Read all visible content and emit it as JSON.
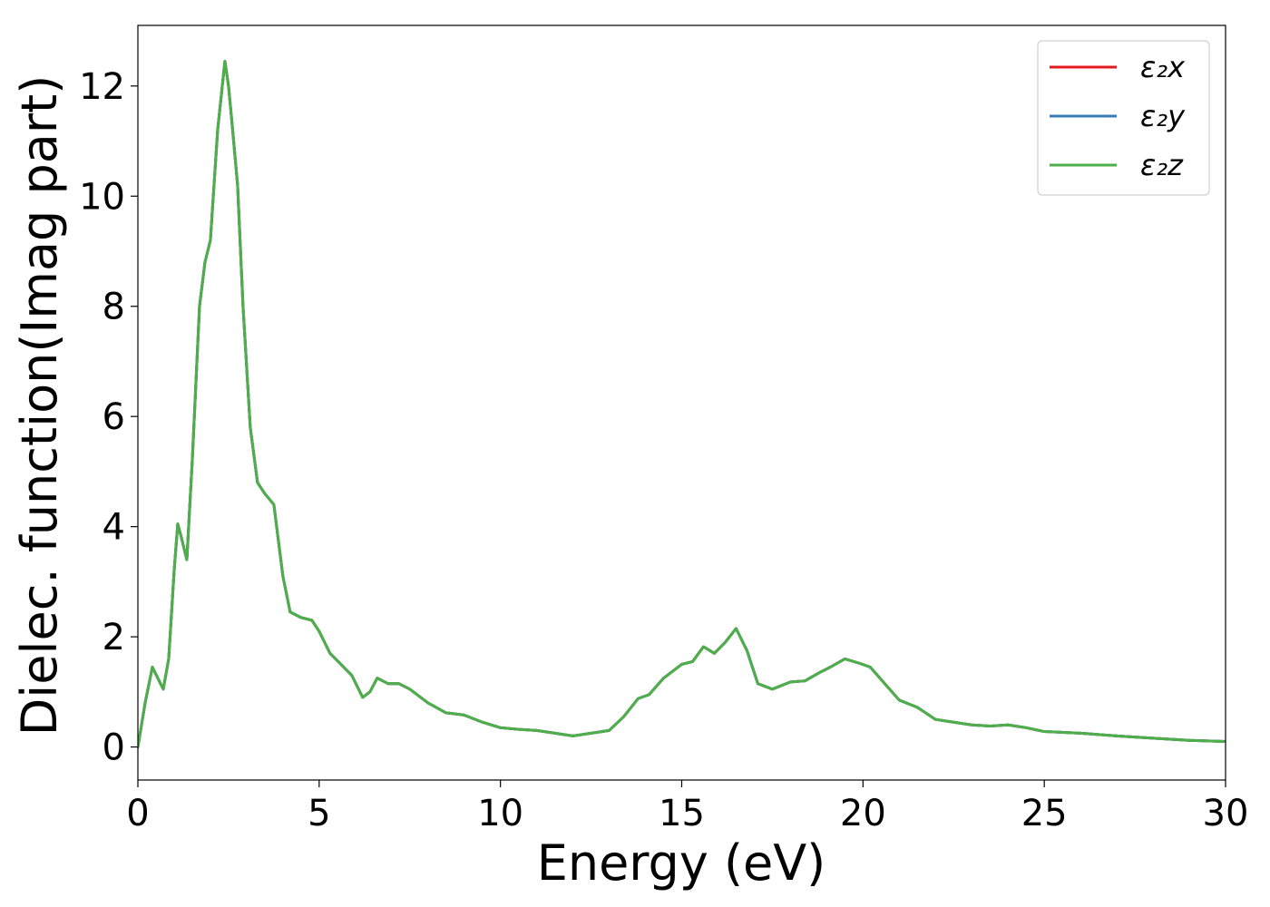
{
  "chart_data": {
    "type": "line",
    "title": "",
    "xlabel": "Energy (eV)",
    "ylabel": "Dielec. function(Imag part)",
    "xlim": [
      0,
      30
    ],
    "ylim": [
      -0.6,
      13.1
    ],
    "xticks": [
      0,
      5,
      10,
      15,
      20,
      25,
      30
    ],
    "yticks": [
      0,
      2,
      4,
      6,
      8,
      10,
      12
    ],
    "grid": false,
    "legend_position": "top-right",
    "x": [
      0,
      0.2,
      0.4,
      0.55,
      0.7,
      0.85,
      1.0,
      1.1,
      1.2,
      1.35,
      1.5,
      1.7,
      1.85,
      2.0,
      2.2,
      2.4,
      2.5,
      2.6,
      2.75,
      2.9,
      3.1,
      3.3,
      3.5,
      3.75,
      4.0,
      4.2,
      4.5,
      4.8,
      5.0,
      5.3,
      5.6,
      5.9,
      6.2,
      6.4,
      6.6,
      6.9,
      7.2,
      7.5,
      8.0,
      8.5,
      9.0,
      9.5,
      10.0,
      10.5,
      11.0,
      11.5,
      12.0,
      12.5,
      13.0,
      13.4,
      13.8,
      14.1,
      14.5,
      15.0,
      15.3,
      15.6,
      15.9,
      16.2,
      16.5,
      16.8,
      17.1,
      17.5,
      18.0,
      18.4,
      18.8,
      19.1,
      19.5,
      19.9,
      20.2,
      20.6,
      21.0,
      21.5,
      22.0,
      22.5,
      23.0,
      23.5,
      24.0,
      24.5,
      25.0,
      26.0,
      27.0,
      28.0,
      29.0,
      30.0
    ],
    "series": [
      {
        "name": "ε₂x",
        "color": "#e41a1c",
        "values": [
          0.0,
          0.8,
          1.45,
          1.25,
          1.05,
          1.6,
          3.2,
          4.05,
          3.8,
          3.4,
          5.2,
          8.0,
          8.8,
          9.2,
          11.2,
          12.45,
          12.0,
          11.3,
          10.2,
          8.0,
          5.8,
          4.8,
          4.6,
          4.4,
          3.1,
          2.45,
          2.35,
          2.3,
          2.1,
          1.7,
          1.5,
          1.3,
          0.9,
          1.0,
          1.25,
          1.15,
          1.15,
          1.05,
          0.8,
          0.62,
          0.58,
          0.45,
          0.35,
          0.32,
          0.3,
          0.25,
          0.2,
          0.25,
          0.3,
          0.55,
          0.88,
          0.95,
          1.25,
          1.5,
          1.55,
          1.82,
          1.7,
          1.9,
          2.15,
          1.75,
          1.15,
          1.05,
          1.18,
          1.2,
          1.35,
          1.45,
          1.6,
          1.52,
          1.45,
          1.15,
          0.85,
          0.72,
          0.5,
          0.45,
          0.4,
          0.38,
          0.4,
          0.35,
          0.28,
          0.25,
          0.2,
          0.16,
          0.12,
          0.1
        ]
      },
      {
        "name": "ε₂y",
        "color": "#377eb8",
        "values": [
          0.0,
          0.8,
          1.45,
          1.25,
          1.05,
          1.6,
          3.2,
          4.05,
          3.8,
          3.4,
          5.2,
          8.0,
          8.8,
          9.2,
          11.2,
          12.45,
          12.0,
          11.3,
          10.2,
          8.0,
          5.8,
          4.8,
          4.6,
          4.4,
          3.1,
          2.45,
          2.35,
          2.3,
          2.1,
          1.7,
          1.5,
          1.3,
          0.9,
          1.0,
          1.25,
          1.15,
          1.15,
          1.05,
          0.8,
          0.62,
          0.58,
          0.45,
          0.35,
          0.32,
          0.3,
          0.25,
          0.2,
          0.25,
          0.3,
          0.55,
          0.88,
          0.95,
          1.25,
          1.5,
          1.55,
          1.82,
          1.7,
          1.9,
          2.15,
          1.75,
          1.15,
          1.05,
          1.18,
          1.2,
          1.35,
          1.45,
          1.6,
          1.52,
          1.45,
          1.15,
          0.85,
          0.72,
          0.5,
          0.45,
          0.4,
          0.38,
          0.4,
          0.35,
          0.28,
          0.25,
          0.2,
          0.16,
          0.12,
          0.1
        ]
      },
      {
        "name": "ε₂z",
        "color": "#4daf4a",
        "values": [
          0.0,
          0.8,
          1.45,
          1.25,
          1.05,
          1.6,
          3.2,
          4.05,
          3.8,
          3.4,
          5.2,
          8.0,
          8.8,
          9.2,
          11.2,
          12.45,
          12.0,
          11.3,
          10.2,
          8.0,
          5.8,
          4.8,
          4.6,
          4.4,
          3.1,
          2.45,
          2.35,
          2.3,
          2.1,
          1.7,
          1.5,
          1.3,
          0.9,
          1.0,
          1.25,
          1.15,
          1.15,
          1.05,
          0.8,
          0.62,
          0.58,
          0.45,
          0.35,
          0.32,
          0.3,
          0.25,
          0.2,
          0.25,
          0.3,
          0.55,
          0.88,
          0.95,
          1.25,
          1.5,
          1.55,
          1.82,
          1.7,
          1.9,
          2.15,
          1.75,
          1.15,
          1.05,
          1.18,
          1.2,
          1.35,
          1.45,
          1.6,
          1.52,
          1.45,
          1.15,
          0.85,
          0.72,
          0.5,
          0.45,
          0.4,
          0.38,
          0.4,
          0.35,
          0.28,
          0.25,
          0.2,
          0.16,
          0.12,
          0.1
        ]
      }
    ]
  }
}
